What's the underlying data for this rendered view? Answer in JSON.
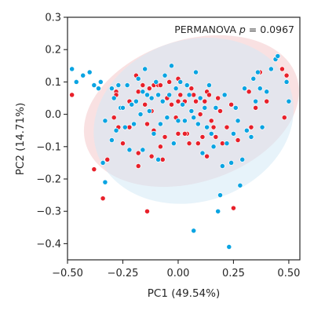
{
  "chart_data": {
    "type": "scatter",
    "xlabel": "PC1 (49.54%)",
    "ylabel": "PC2 (14.71%)",
    "xlim": [
      -0.5,
      0.55
    ],
    "ylim": [
      -0.45,
      0.3
    ],
    "xticks": [
      -0.5,
      -0.25,
      0.0,
      0.25,
      0.5
    ],
    "xtick_labels": [
      "−0.50",
      "−0.25",
      "0.00",
      "0.25",
      "0.50"
    ],
    "yticks": [
      -0.4,
      -0.3,
      -0.2,
      -0.1,
      0.0,
      0.1,
      0.2,
      0.3
    ],
    "ytick_labels": [
      "−0.4",
      "−0.3",
      "−0.2",
      "−0.1",
      "0.0",
      "0.1",
      "0.2",
      "0.3"
    ],
    "annotation": {
      "text_before": "PERMANOVA ",
      "p_symbol": "p",
      "text_after": " = 0.0967"
    },
    "grid": false,
    "series": [
      {
        "color": "#E8202A",
        "ellipse": {
          "cx": 0.06,
          "cy": 0.01,
          "rx": 0.5,
          "ry": 0.22,
          "angle_deg": 18,
          "fill": "#F4C9CB",
          "opacity": 0.55
        },
        "points": [
          [
            -0.48,
            0.06
          ],
          [
            -0.38,
            -0.17
          ],
          [
            -0.32,
            -0.14
          ],
          [
            -0.28,
            0.07
          ],
          [
            -0.29,
            -0.01
          ],
          [
            -0.28,
            0.06
          ],
          [
            -0.27,
            -0.04
          ],
          [
            -0.25,
            -0.09
          ],
          [
            -0.22,
            -0.04
          ],
          [
            -0.22,
            0.04
          ],
          [
            -0.19,
            0.12
          ],
          [
            -0.18,
            0.07
          ],
          [
            -0.18,
            -0.16
          ],
          [
            -0.16,
            0.09
          ],
          [
            -0.15,
            0.03
          ],
          [
            -0.14,
            -0.03
          ],
          [
            -0.13,
            0.08
          ],
          [
            -0.12,
            0.01
          ],
          [
            -0.12,
            -0.13
          ],
          [
            -0.11,
            0.09
          ],
          [
            -0.11,
            -0.05
          ],
          [
            -0.09,
            0.09
          ],
          [
            -0.08,
            0.09
          ],
          [
            -0.08,
            -0.03
          ],
          [
            -0.08,
            -0.1
          ],
          [
            -0.07,
            -0.14
          ],
          [
            -0.06,
            -0.07
          ],
          [
            -0.05,
            0.05
          ],
          [
            -0.04,
            0.1
          ],
          [
            -0.03,
            0.03
          ],
          [
            -0.01,
            -0.01
          ],
          [
            0.0,
            0.11
          ],
          [
            0.0,
            0.04
          ],
          [
            0.0,
            -0.06
          ],
          [
            0.01,
            0.06
          ],
          [
            0.03,
            0.04
          ],
          [
            0.04,
            -0.06
          ],
          [
            0.05,
            -0.09
          ],
          [
            0.06,
            0.08
          ],
          [
            0.07,
            0.06
          ],
          [
            0.08,
            0.04
          ],
          [
            0.09,
            -0.09
          ],
          [
            0.1,
            0.0
          ],
          [
            0.11,
            -0.07
          ],
          [
            0.12,
            0.04
          ],
          [
            0.13,
            0.07
          ],
          [
            0.13,
            -0.13
          ],
          [
            0.14,
            0.06
          ],
          [
            0.15,
            -0.02
          ],
          [
            0.17,
            -0.07
          ],
          [
            0.18,
            0.05
          ],
          [
            0.19,
            0.01
          ],
          [
            0.2,
            -0.09
          ],
          [
            0.22,
            -0.04
          ],
          [
            0.24,
            0.03
          ],
          [
            0.25,
            -0.29
          ],
          [
            0.27,
            -0.08
          ],
          [
            0.32,
            0.07
          ],
          [
            0.33,
            -0.04
          ],
          [
            0.35,
            0.02
          ],
          [
            0.37,
            0.13
          ],
          [
            0.4,
            0.04
          ],
          [
            0.47,
            0.14
          ],
          [
            0.48,
            -0.01
          ],
          [
            0.49,
            0.12
          ],
          [
            -0.34,
            -0.26
          ],
          [
            -0.14,
            -0.3
          ],
          [
            0.03,
            -0.06
          ],
          [
            -0.18,
            -0.12
          ],
          [
            0.16,
            -0.04
          ]
        ]
      },
      {
        "color": "#0AA4E2",
        "ellipse": {
          "cx": 0.07,
          "cy": -0.02,
          "rx": 0.46,
          "ry": 0.25,
          "angle_deg": 18,
          "fill": "#D4EAF6",
          "opacity": 0.55
        },
        "points": [
          [
            -0.48,
            0.14
          ],
          [
            -0.46,
            0.1
          ],
          [
            -0.43,
            0.12
          ],
          [
            -0.43,
            0.12
          ],
          [
            -0.4,
            0.13
          ],
          [
            -0.38,
            0.09
          ],
          [
            -0.36,
            0.08
          ],
          [
            -0.35,
            0.1
          ],
          [
            -0.34,
            -0.15
          ],
          [
            -0.33,
            -0.02
          ],
          [
            -0.33,
            -0.21
          ],
          [
            -0.3,
            0.08
          ],
          [
            -0.3,
            -0.08
          ],
          [
            -0.29,
            0.05
          ],
          [
            -0.28,
            -0.05
          ],
          [
            -0.27,
            0.09
          ],
          [
            -0.26,
            0.02
          ],
          [
            -0.25,
            0.02
          ],
          [
            -0.24,
            -0.04
          ],
          [
            -0.23,
            0.09
          ],
          [
            -0.22,
            -0.11
          ],
          [
            -0.21,
            0.03
          ],
          [
            -0.2,
            -0.03
          ],
          [
            -0.19,
            0.04
          ],
          [
            -0.18,
            0.11
          ],
          [
            -0.17,
            0.0
          ],
          [
            -0.16,
            0.07
          ],
          [
            -0.16,
            -0.11
          ],
          [
            -0.15,
            0.14
          ],
          [
            -0.14,
            0.06
          ],
          [
            -0.13,
            0.01
          ],
          [
            -0.12,
            0.05
          ],
          [
            -0.11,
            -0.06
          ],
          [
            -0.1,
            0.1
          ],
          [
            -0.09,
            0.06
          ],
          [
            -0.09,
            -0.14
          ],
          [
            -0.08,
            -0.03
          ],
          [
            -0.07,
            0.04
          ],
          [
            -0.06,
            0.12
          ],
          [
            -0.05,
            -0.01
          ],
          [
            -0.04,
            0.06
          ],
          [
            -0.03,
            0.15
          ],
          [
            -0.02,
            -0.09
          ],
          [
            -0.01,
            0.08
          ],
          [
            0.0,
            -0.02
          ],
          [
            0.01,
            0.1
          ],
          [
            0.02,
            0.03
          ],
          [
            0.03,
            -0.02
          ],
          [
            0.04,
            0.09
          ],
          [
            0.05,
            0.06
          ],
          [
            0.06,
            0.01
          ],
          [
            0.07,
            -0.01
          ],
          [
            0.07,
            -0.36
          ],
          [
            0.08,
            0.13
          ],
          [
            0.09,
            -0.03
          ],
          [
            0.1,
            0.05
          ],
          [
            0.11,
            -0.12
          ],
          [
            0.12,
            0.02
          ],
          [
            0.13,
            -0.04
          ],
          [
            0.14,
            0.09
          ],
          [
            0.15,
            -0.06
          ],
          [
            0.16,
            -0.1
          ],
          [
            0.17,
            0.02
          ],
          [
            0.18,
            -0.3
          ],
          [
            0.19,
            -0.25
          ],
          [
            0.2,
            -0.16
          ],
          [
            0.21,
            0.06
          ],
          [
            0.22,
            -0.09
          ],
          [
            0.23,
            -0.41
          ],
          [
            0.24,
            -0.15
          ],
          [
            0.25,
            -0.06
          ],
          [
            0.26,
            0.02
          ],
          [
            0.27,
            -0.02
          ],
          [
            0.28,
            -0.22
          ],
          [
            0.29,
            -0.14
          ],
          [
            0.3,
            0.08
          ],
          [
            0.31,
            -0.05
          ],
          [
            0.33,
            -0.07
          ],
          [
            0.34,
            0.11
          ],
          [
            0.35,
            0.04
          ],
          [
            0.36,
            0.13
          ],
          [
            0.37,
            0.08
          ],
          [
            0.38,
            -0.04
          ],
          [
            0.4,
            0.07
          ],
          [
            0.42,
            0.14
          ],
          [
            0.44,
            0.17
          ],
          [
            0.45,
            0.18
          ],
          [
            0.49,
            0.1
          ],
          [
            0.5,
            0.04
          ]
        ]
      }
    ]
  }
}
